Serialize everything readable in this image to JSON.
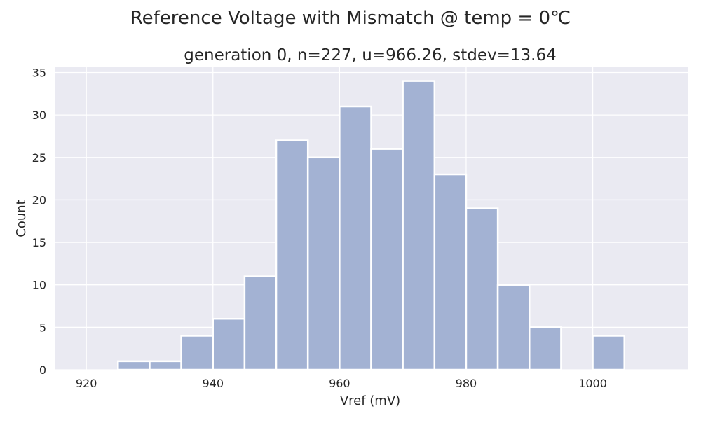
{
  "chart_data": {
    "type": "bar",
    "suptitle": "Reference Voltage with Mismatch @ temp = 0℃",
    "title": "generation 0, n=227, u=966.26, stdev=13.64",
    "xlabel": "Vref (mV)",
    "ylabel": "Count",
    "xlim": [
      915,
      1015
    ],
    "ylim": [
      0,
      35.7
    ],
    "xticks": [
      920,
      940,
      960,
      980,
      1000
    ],
    "yticks": [
      0,
      5,
      10,
      15,
      20,
      25,
      30,
      35
    ],
    "grid": true,
    "legend": "none",
    "bin_edges": [
      920,
      925,
      930,
      935,
      940,
      945,
      950,
      955,
      960,
      965,
      970,
      975,
      980,
      985,
      990,
      995,
      1000,
      1005,
      1010
    ],
    "counts": [
      0,
      1,
      1,
      4,
      6,
      11,
      27,
      25,
      31,
      26,
      34,
      23,
      19,
      10,
      5,
      0,
      4,
      0
    ],
    "colors": {
      "bar_fill": "#a3b2d3",
      "bar_edge": "#ffffff",
      "plot_bg": "#eaeaf2",
      "grid": "#ffffff",
      "text": "#262626"
    }
  }
}
